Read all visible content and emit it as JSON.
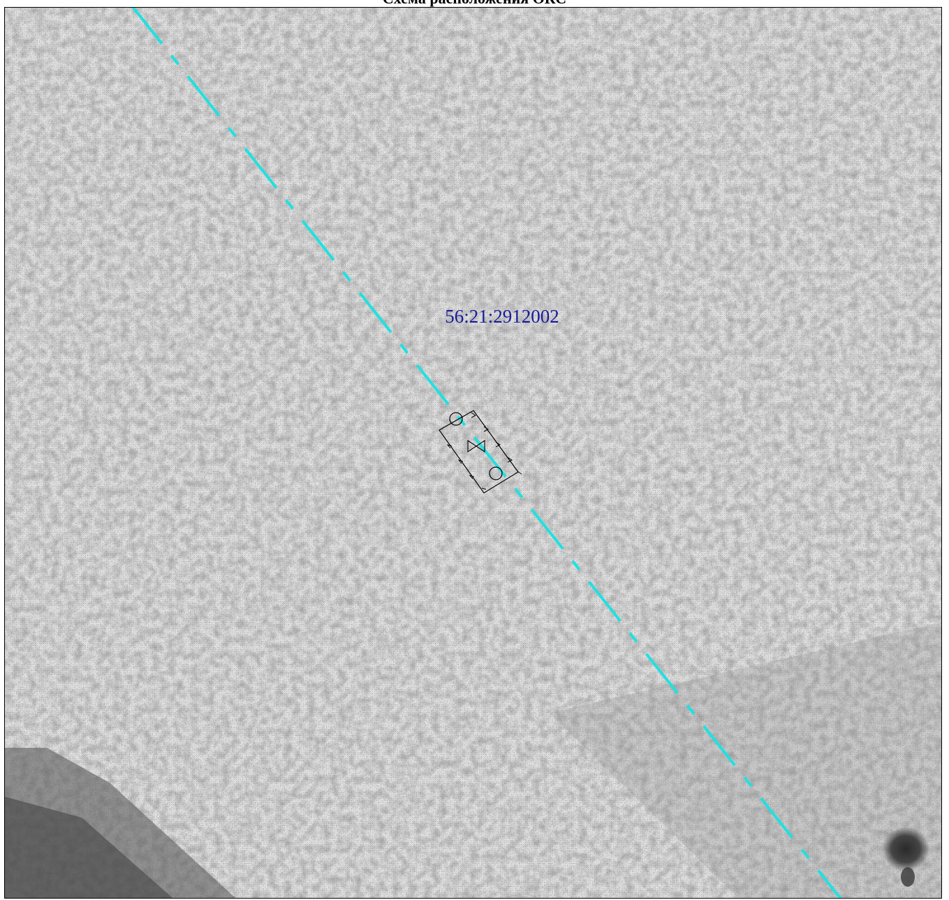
{
  "title": "Схема расположения ОКС",
  "colors": {
    "boundary_line": "#22e0e0",
    "label_text": "#1a1a9c",
    "structure_outline": "#000000",
    "frame": "#000000"
  },
  "icons": {
    "valve": "valve-symbol-icon",
    "well_top": "well-circle-icon",
    "well_bottom": "well-circle-icon"
  },
  "map": {
    "parcel_label": "56:21:2912002",
    "background": "aerial-imagery-grayscale"
  }
}
